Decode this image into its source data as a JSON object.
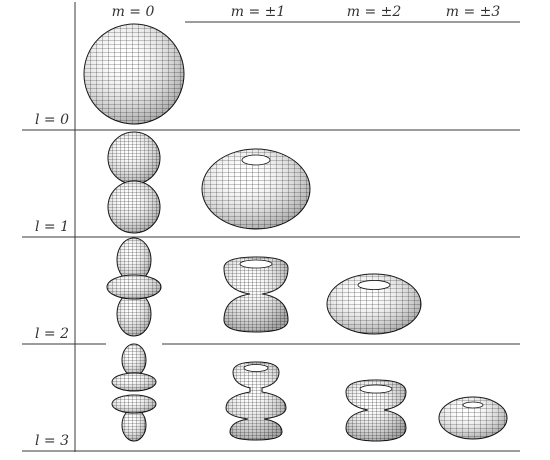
{
  "column_headers": [
    "m = 0",
    "m = ±1",
    "m = ±2",
    "m = ±3"
  ],
  "row_labels": [
    "l = 0",
    "l = 1",
    "l = 2",
    "l = 3"
  ],
  "colors": {
    "mesh_stroke": "#1a1a1a",
    "surface_fill": "#ffffff",
    "rule": "#3a3a3a",
    "label": "#333333"
  },
  "shapes": [
    {
      "l": 0,
      "m": "0",
      "form": "sphere"
    },
    {
      "l": 1,
      "m": "0",
      "form": "two-lobes"
    },
    {
      "l": 1,
      "m": "±1",
      "form": "torus"
    },
    {
      "l": 2,
      "m": "0",
      "form": "lobes-with-ring"
    },
    {
      "l": 2,
      "m": "±1",
      "form": "double-cone-pair"
    },
    {
      "l": 2,
      "m": "±2",
      "form": "flat-torus"
    },
    {
      "l": 3,
      "m": "0",
      "form": "lobes-with-two-rings"
    },
    {
      "l": 3,
      "m": "±1",
      "form": "stacked-tori"
    },
    {
      "l": 3,
      "m": "±2",
      "form": "double-bowl"
    },
    {
      "l": 3,
      "m": "±3",
      "form": "flat-disc"
    }
  ]
}
